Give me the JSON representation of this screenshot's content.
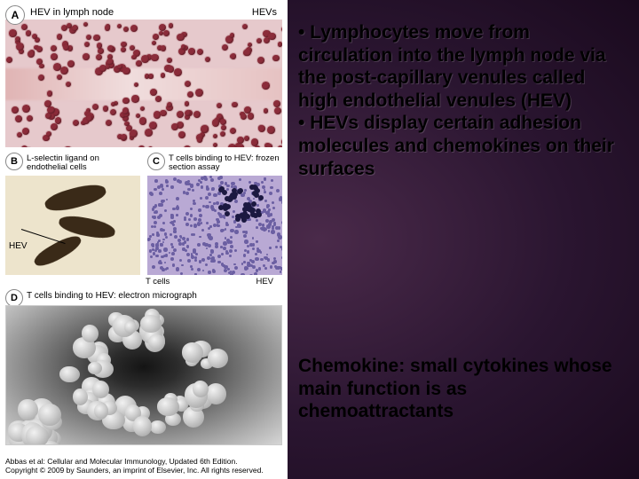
{
  "slide": {
    "background_gradient": [
      "#4a2a4a",
      "#2a1530",
      "#1a0a1e"
    ],
    "text_color": "#000000",
    "bullets": [
      "Lymphocytes move from circulation into the lymph node via  the post-capillary venules called high endothelial venules (HEV)",
      "HEVs display certain adhesion molecules and chemokines on their surfaces"
    ],
    "definition": "Chemokine: small cytokines whose main function is as chemoattractants",
    "font_size_pt": 16,
    "font_weight": "bold"
  },
  "figure": {
    "panelA": {
      "badge": "A",
      "caption_left": "HEV in lymph node",
      "caption_right": "HEVs",
      "bg_color": "#E6C9CC",
      "cell_color": "#8B2C3A"
    },
    "panelB": {
      "badge": "B",
      "caption": "L-selectin ligand on endothelial cells",
      "bg_color": "#EDE4CC",
      "vessel_color": "#3a2a18",
      "callout": "HEV"
    },
    "panelC": {
      "badge": "C",
      "caption": "T cells binding to HEV: frozen section assay",
      "bg_color": "#B9A9D4",
      "stain_color": "#6b5fa2",
      "cluster_color": "#1b1840",
      "bottom_left": "T cells",
      "bottom_right": "HEV"
    },
    "panelD": {
      "badge": "D",
      "caption": "T cells binding to HEV: electron micrograph"
    },
    "credit_line1": "Abbas et al: Cellular and Molecular Immunology, Updated 6th Edition.",
    "credit_line2": "Copyright © 2009 by Saunders, an imprint of Elsevier, Inc. All rights reserved."
  }
}
